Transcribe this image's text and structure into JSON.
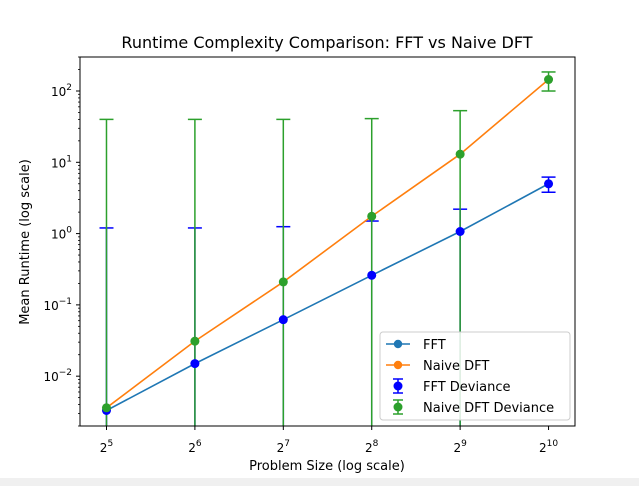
{
  "chart_data": {
    "type": "line",
    "title": "Runtime Complexity Comparison: FFT vs Naive DFT",
    "xlabel": "Problem Size (log scale)",
    "ylabel": "Mean Runtime (log scale)",
    "x_scale": "log2",
    "y_scale": "log10",
    "x": [
      32,
      64,
      128,
      256,
      512,
      1024
    ],
    "x_tick_labels": [
      {
        "base": "2",
        "exp": "5"
      },
      {
        "base": "2",
        "exp": "6"
      },
      {
        "base": "2",
        "exp": "7"
      },
      {
        "base": "2",
        "exp": "8"
      },
      {
        "base": "2",
        "exp": "9"
      },
      {
        "base": "2",
        "exp": "10"
      }
    ],
    "y_ticks": [
      0.01,
      0.1,
      1,
      10,
      100
    ],
    "y_tick_labels": [
      {
        "base": "10",
        "exp": "−2"
      },
      {
        "base": "10",
        "exp": "−1"
      },
      {
        "base": "10",
        "exp": "0"
      },
      {
        "base": "10",
        "exp": "1"
      },
      {
        "base": "10",
        "exp": "2"
      }
    ],
    "ylim": [
      0.002,
      300
    ],
    "xlim": [
      26,
      1260
    ],
    "grid": false,
    "legend_position": "bottom-right",
    "series": [
      {
        "name": "FFT",
        "kind": "line",
        "color": "#1f77b4",
        "values": [
          0.0033,
          0.015,
          0.062,
          0.26,
          1.07,
          5.0
        ]
      },
      {
        "name": "Naive DFT",
        "kind": "line",
        "color": "#ff7f0e",
        "values": [
          0.0036,
          0.031,
          0.21,
          1.75,
          13.0,
          145
        ]
      }
    ],
    "error_series": [
      {
        "name": "FFT Deviance",
        "color": "#0000ff",
        "values": [
          0.0033,
          0.015,
          0.062,
          0.26,
          1.07,
          5.0
        ],
        "upper": [
          1.2,
          1.2,
          1.25,
          1.5,
          2.2,
          6.2
        ],
        "lower": [
          0.002,
          0.002,
          0.002,
          0.002,
          0.002,
          3.8
        ]
      },
      {
        "name": "Naive DFT Deviance",
        "color": "#2ca02c",
        "values": [
          0.0036,
          0.031,
          0.21,
          1.75,
          13.0,
          145
        ],
        "upper": [
          40,
          40,
          40,
          41,
          53,
          185
        ],
        "lower": [
          0.002,
          0.002,
          0.002,
          0.002,
          0.002,
          100
        ]
      }
    ]
  }
}
